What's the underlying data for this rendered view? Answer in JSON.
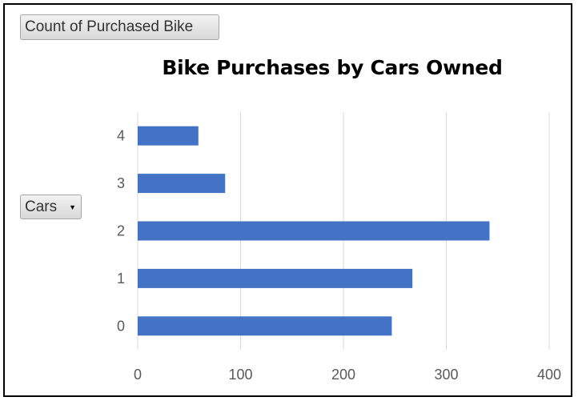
{
  "pivot": {
    "value_field": "Count of Purchased Bike",
    "axis_field": "Cars"
  },
  "colors": {
    "bar": "#4472C4",
    "grid": "#d9d9d9",
    "tick_text": "#595959"
  },
  "chart_data": {
    "type": "bar",
    "orientation": "horizontal",
    "title": "Bike Purchases by Cars Owned",
    "categories": [
      "0",
      "1",
      "2",
      "3",
      "4"
    ],
    "values": [
      247,
      267,
      342,
      85,
      59
    ],
    "xlim": [
      0,
      400
    ],
    "x_ticks": [
      "0",
      "100",
      "200",
      "300",
      "400"
    ],
    "xlabel": "",
    "ylabel": "",
    "grid": "vertical",
    "legend": "none"
  }
}
